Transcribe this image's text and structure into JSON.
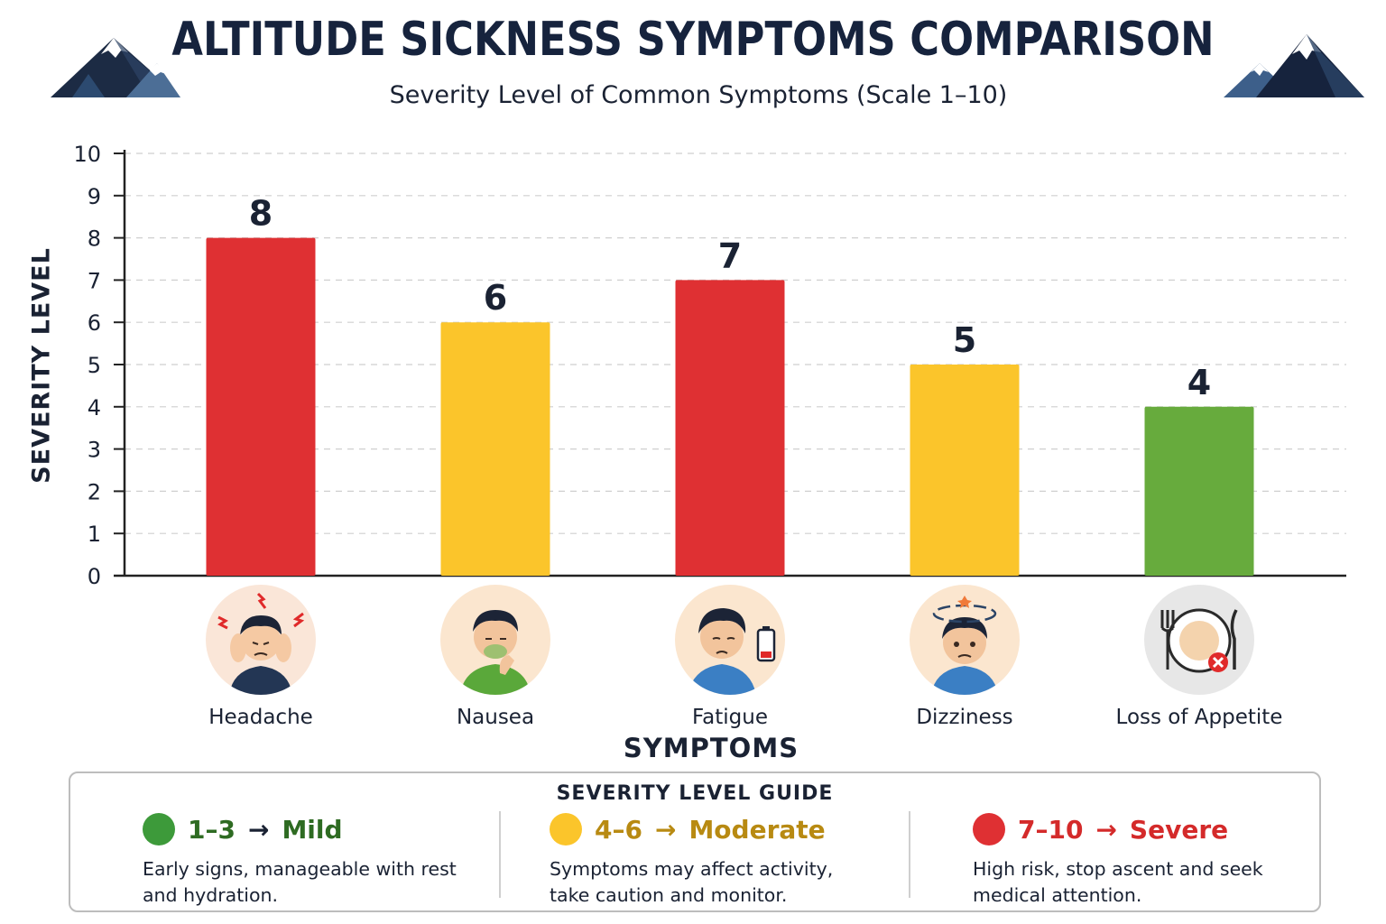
{
  "header": {
    "title": "ALTITUDE SICKNESS SYMPTOMS COMPARISON",
    "subtitle": "Severity Level of Common Symptoms (Scale 1–10)"
  },
  "chart_data": {
    "type": "bar",
    "title": "ALTITUDE SICKNESS SYMPTOMS COMPARISON",
    "subtitle": "Severity Level of Common Symptoms (Scale 1–10)",
    "xlabel": "SYMPTOMS",
    "ylabel": "SEVERITY LEVEL",
    "ylim": [
      0,
      10
    ],
    "yticks": [
      0,
      1,
      2,
      3,
      4,
      5,
      6,
      7,
      8,
      9,
      10
    ],
    "grid": true,
    "categories": [
      "Headache",
      "Nausea",
      "Fatigue",
      "Dizziness",
      "Loss of Appetite"
    ],
    "values": [
      8,
      6,
      7,
      5,
      4
    ],
    "bar_colors": [
      "#df3033",
      "#fbc52b",
      "#df3033",
      "#fbc52b",
      "#67ab3d"
    ]
  },
  "symptom_icons": [
    "headache-icon",
    "nausea-icon",
    "fatigue-icon",
    "dizziness-icon",
    "loss-of-appetite-icon"
  ],
  "guide": {
    "title": "SEVERITY LEVEL GUIDE",
    "levels": [
      {
        "range": "1–3",
        "arrow": "→",
        "label": "Mild",
        "color": "#3d9a3a",
        "text_color": "#2e6b22",
        "description": "Early signs, manageable with rest and hydration."
      },
      {
        "range": "4–6",
        "arrow": "→",
        "label": "Moderate",
        "color": "#fbc52b",
        "text_color": "#b88a12",
        "description": "Symptoms may affect activity, take caution and monitor."
      },
      {
        "range": "7–10",
        "arrow": "→",
        "label": "Severe",
        "color": "#df3033",
        "text_color": "#d42a2a",
        "description": "High risk, stop ascent and seek medical attention."
      }
    ]
  }
}
